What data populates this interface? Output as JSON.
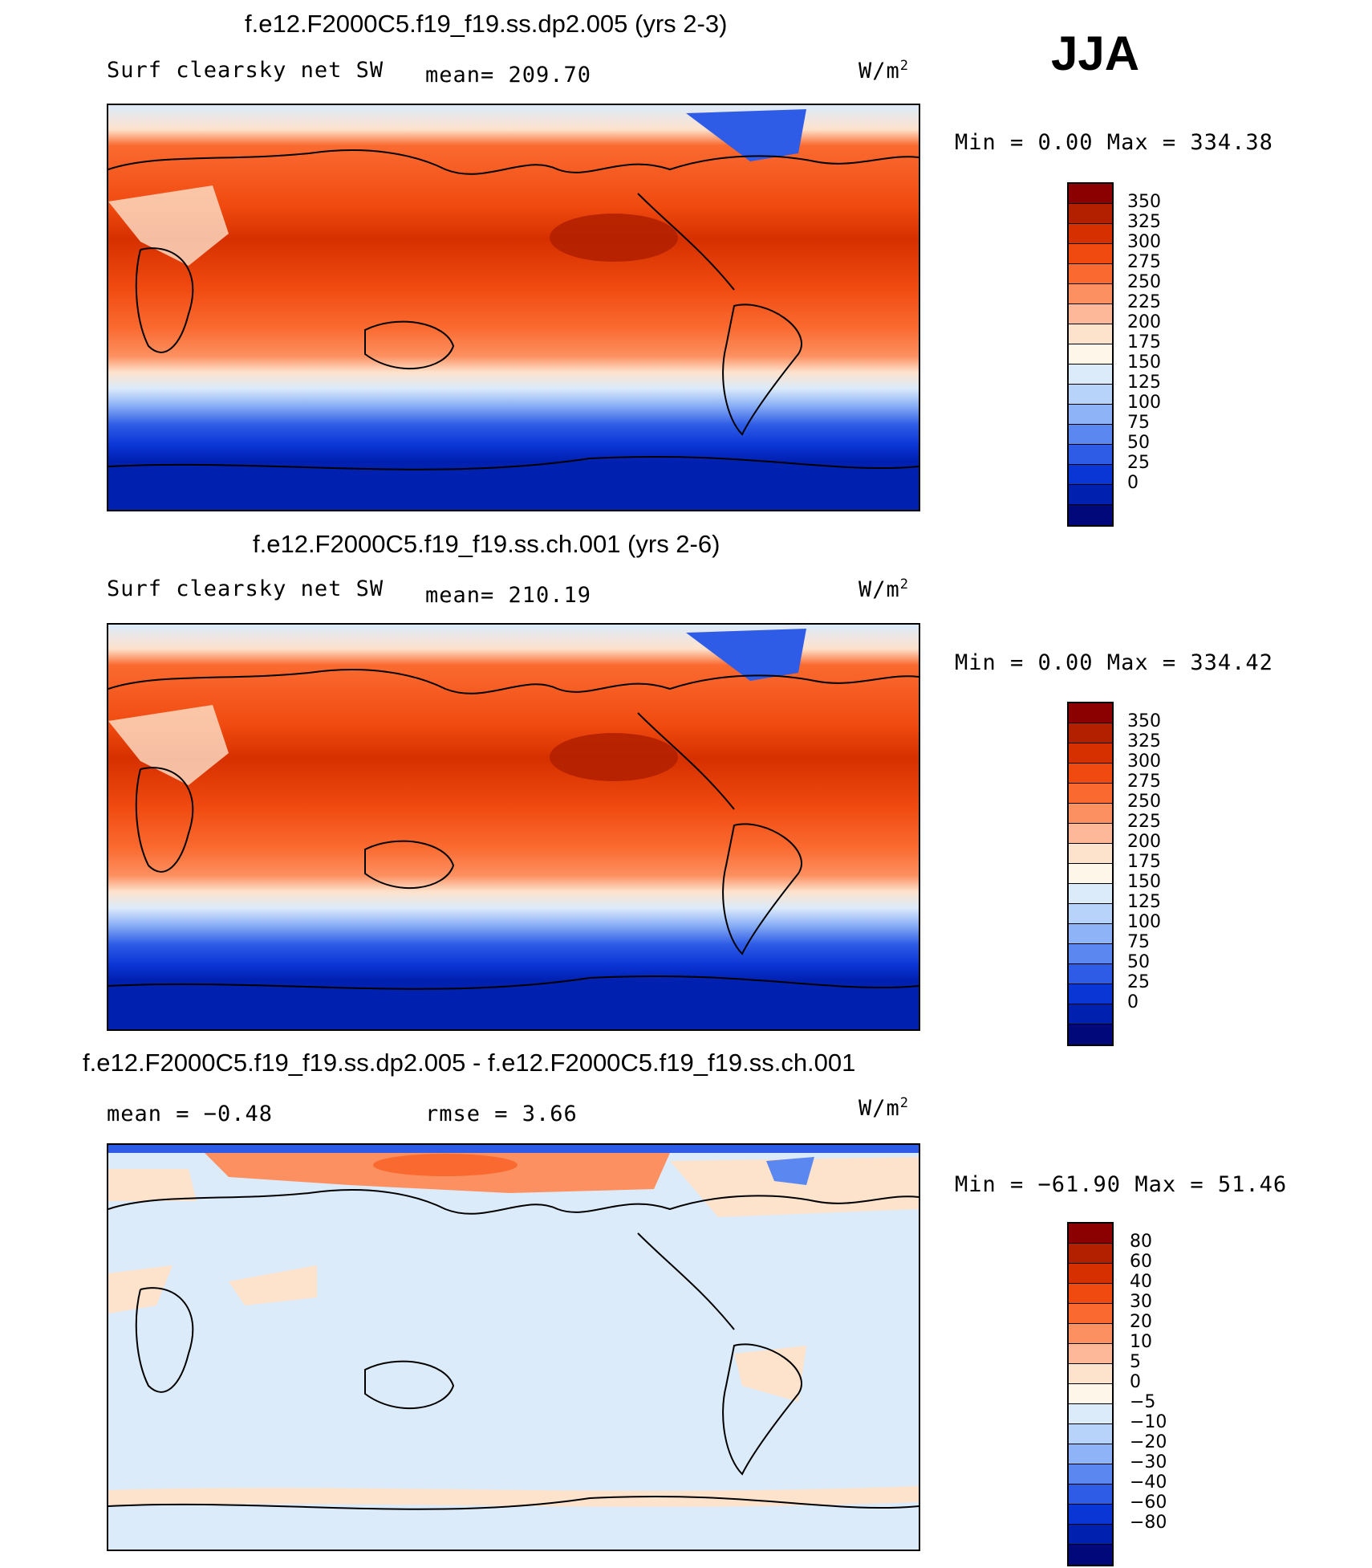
{
  "season": "JJA",
  "panels": [
    {
      "title": "f.e12.F2000C5.f19_f19.ss.dp2.005 (yrs 2-3)",
      "variable": "Surf clearsky net SW",
      "stat": "mean=  209.70",
      "unit": "W/m",
      "unit_exp": "2",
      "minmax": "Min =    0.00 Max  =  334.38",
      "colorbar_labels": [
        "350",
        "325",
        "300",
        "275",
        "250",
        "225",
        "200",
        "175",
        "150",
        "125",
        "100",
        "75",
        "50",
        "25",
        "0"
      ],
      "map_alt": "Global map of surface clear-sky net shortwave radiation"
    },
    {
      "title": "f.e12.F2000C5.f19_f19.ss.ch.001 (yrs 2-6)",
      "variable": "Surf clearsky net SW",
      "stat": "mean=  210.19",
      "unit": "W/m",
      "unit_exp": "2",
      "minmax": "Min =    0.00 Max  =  334.42",
      "colorbar_labels": [
        "350",
        "325",
        "300",
        "275",
        "250",
        "225",
        "200",
        "175",
        "150",
        "125",
        "100",
        "75",
        "50",
        "25",
        "0"
      ],
      "map_alt": "Global map of surface clear-sky net shortwave radiation"
    },
    {
      "title": "f.e12.F2000C5.f19_f19.ss.dp2.005 - f.e12.F2000C5.f19_f19.ss.ch.001",
      "stat_mean": "mean =   −0.48",
      "stat_rmse": "rmse =    3.66",
      "unit": "W/m",
      "unit_exp": "2",
      "minmax": "Min = −61.90 Max =   51.46",
      "colorbar_labels": [
        "80",
        "60",
        "40",
        "30",
        "20",
        "10",
        "5",
        "0",
        "−5",
        "−10",
        "−20",
        "−30",
        "−40",
        "−60",
        "−80"
      ],
      "map_alt": "Difference map of surface clear-sky net shortwave radiation"
    }
  ],
  "colors": {
    "abs_scale": [
      "#8b0000",
      "#b22000",
      "#d63000",
      "#f04a10",
      "#fa6a30",
      "#fc9060",
      "#fdb89a",
      "#fde2cc",
      "#fff6ea",
      "#dcebfa",
      "#b8d3fa",
      "#8fb3f7",
      "#5a87f0",
      "#2e5ce6",
      "#0b36d6",
      "#0020b0",
      "#00087a"
    ],
    "diff_scale": [
      "#8b0000",
      "#b22000",
      "#d63000",
      "#f04a10",
      "#fa6a30",
      "#fc9060",
      "#fdb89a",
      "#fde2cc",
      "#fff6ea",
      "#dcebfa",
      "#b8d3fa",
      "#8fb3f7",
      "#5a87f0",
      "#2e5ce6",
      "#0b36d6",
      "#0020b0",
      "#00087a"
    ],
    "diff_main_land": "#fde2cc",
    "diff_main_ocean": "#dcebfa"
  }
}
